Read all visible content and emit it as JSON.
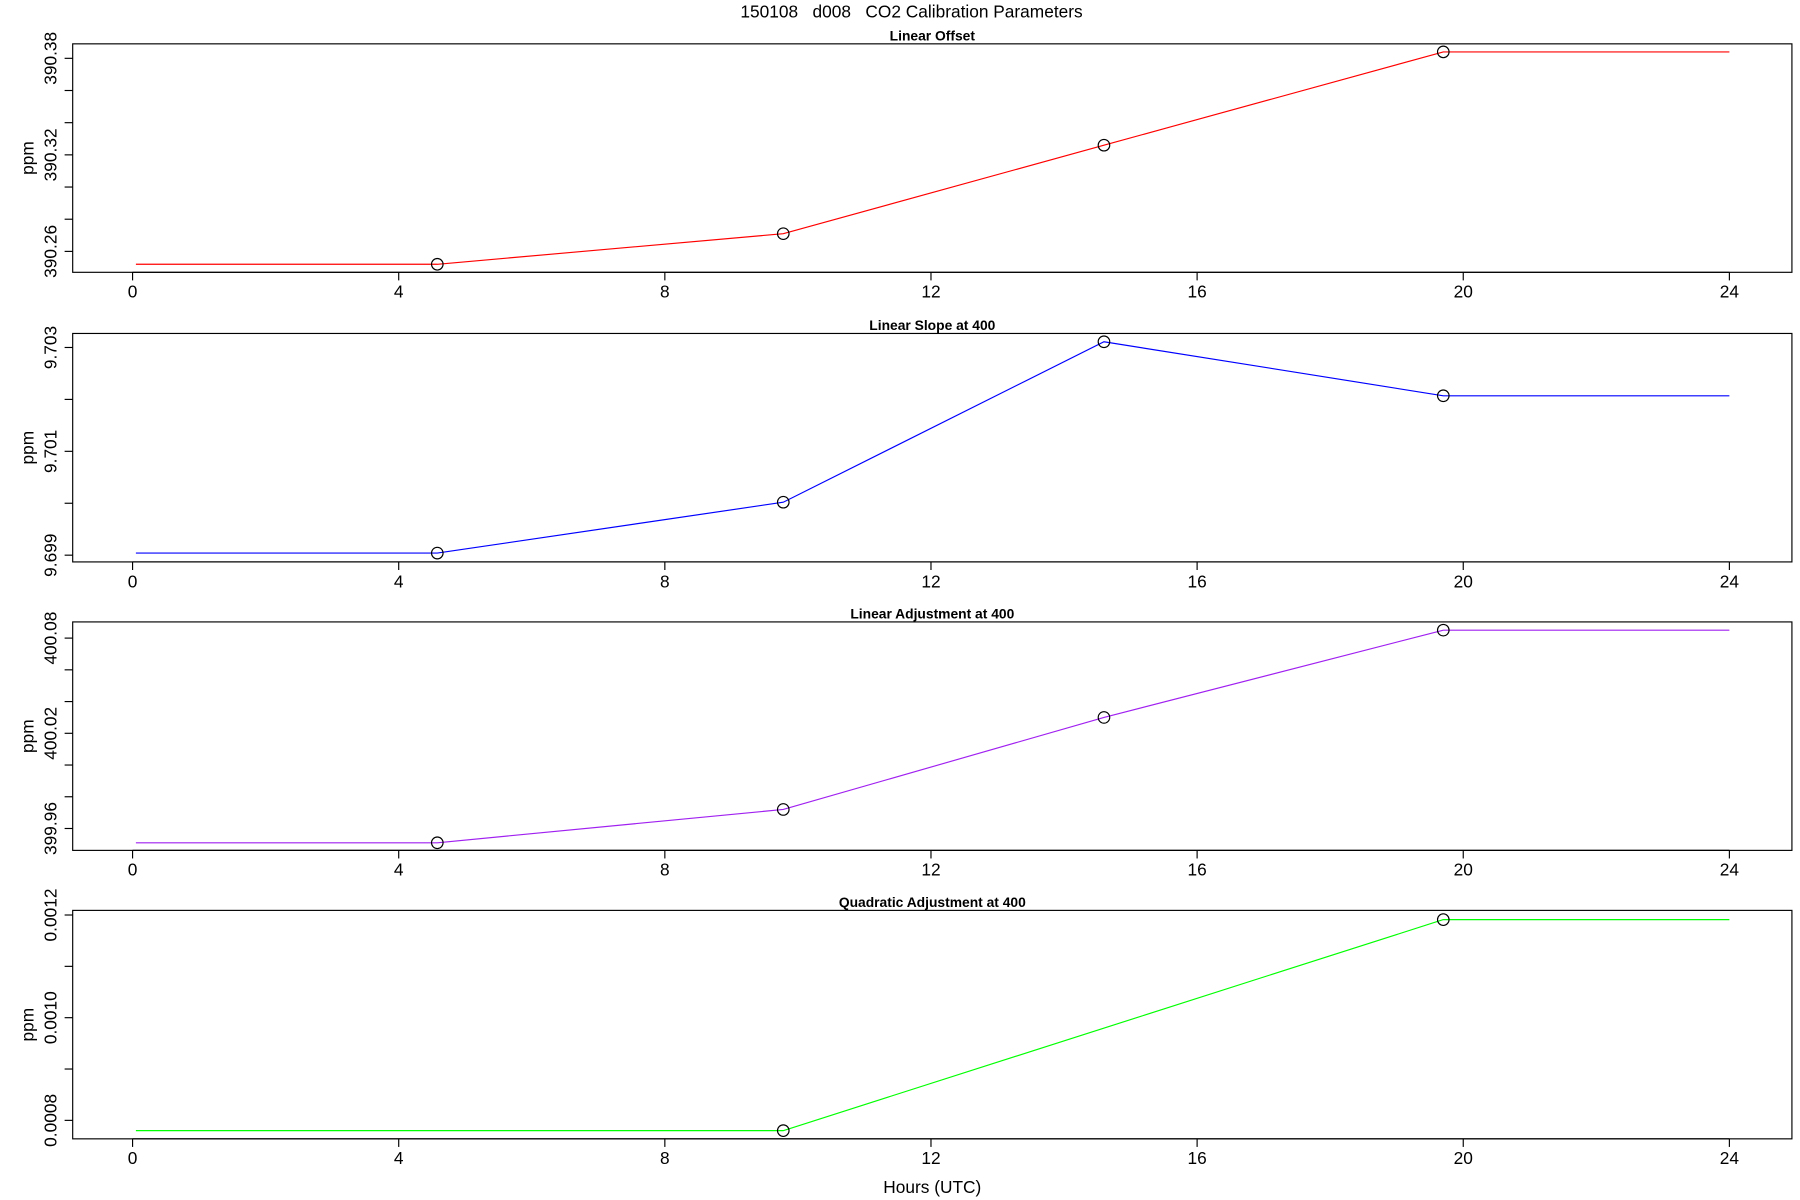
{
  "title": "150108   d008   CO2 Calibration Parameters",
  "chart_data": [
    {
      "type": "line",
      "title": "Linear Offset",
      "ylabel": "ppm",
      "color": "#ff0000",
      "xlim": [
        -0.9,
        24.94
      ],
      "xticks": [
        0,
        4,
        8,
        12,
        16,
        20,
        24
      ],
      "ylim": [
        390.247,
        390.389
      ],
      "yticks": [
        390.26,
        390.32,
        390.38
      ],
      "yticks_minor": [
        390.28,
        390.3,
        390.34,
        390.36
      ],
      "series": [
        {
          "color": "#ff0000",
          "x": [
            0.05,
            4.58,
            9.78,
            14.6,
            19.7,
            24
          ],
          "values": [
            390.252,
            390.252,
            390.271,
            390.326,
            390.384,
            390.384
          ]
        }
      ],
      "points": {
        "x": [
          4.58,
          9.78,
          14.6,
          19.7
        ],
        "values": [
          390.252,
          390.271,
          390.326,
          390.384
        ]
      }
    },
    {
      "type": "line",
      "title": "Linear Slope at 400",
      "ylabel": "ppm",
      "color": "#0000ff",
      "xlim": [
        -0.9,
        24.94
      ],
      "xticks": [
        0,
        4,
        8,
        12,
        16,
        20,
        24
      ],
      "ylim": [
        9.69887,
        9.70327
      ],
      "yticks": [
        9.699,
        9.701,
        9.703
      ],
      "yticks_minor": [
        9.7,
        9.702
      ],
      "series": [
        {
          "color": "#0000ff",
          "x": [
            0.05,
            4.58,
            9.78,
            14.6,
            19.7,
            24
          ],
          "values": [
            9.69904,
            9.69904,
            9.70002,
            9.70311,
            9.70207,
            9.70207
          ]
        }
      ],
      "points": {
        "x": [
          4.58,
          9.78,
          14.6,
          19.7
        ],
        "values": [
          9.69904,
          9.70002,
          9.70311,
          9.70207
        ]
      }
    },
    {
      "type": "line",
      "title": "Linear Adjustment at 400",
      "ylabel": "ppm",
      "color": "#a020f0",
      "xlim": [
        -0.9,
        24.94
      ],
      "xticks": [
        0,
        4,
        8,
        12,
        16,
        20,
        24
      ],
      "ylim": [
        399.9462,
        400.0902
      ],
      "yticks": [
        399.96,
        400.02,
        400.08
      ],
      "yticks_minor": [
        399.98,
        400.0,
        400.04,
        400.06
      ],
      "series": [
        {
          "color": "#a020f0",
          "x": [
            0.05,
            4.58,
            9.78,
            14.6,
            19.7,
            24
          ],
          "values": [
            399.951,
            399.951,
            399.972,
            400.03,
            400.085,
            400.085
          ]
        }
      ],
      "points": {
        "x": [
          4.58,
          9.78,
          14.6,
          19.7
        ],
        "values": [
          399.951,
          399.972,
          400.03,
          400.085
        ]
      }
    },
    {
      "type": "line",
      "title": "Quadratic Adjustment at 400",
      "ylabel": "ppm",
      "xlabel": "Hours (UTC)",
      "color": "#00ff00",
      "xlim": [
        -0.9,
        24.94
      ],
      "xticks": [
        0,
        4,
        8,
        12,
        16,
        20,
        24
      ],
      "ylim": [
        0.000764,
        0.001209
      ],
      "yticks": [
        {
          "value": 0.0008,
          "label": "0.0008"
        },
        {
          "value": 0.001,
          "label": "0.0010"
        },
        {
          "value": 0.0012,
          "label": "0.0012"
        }
      ],
      "yticks_minor": [
        0.0009,
        0.0011
      ],
      "series": [
        {
          "color": "#00ff00",
          "x": [
            0.05,
            9.78,
            19.7,
            24
          ],
          "values": [
            0.00078,
            0.00078,
            0.001191,
            0.001191
          ]
        }
      ],
      "points": {
        "x": [
          9.78,
          19.7
        ],
        "values": [
          0.00078,
          0.001191
        ]
      }
    }
  ]
}
